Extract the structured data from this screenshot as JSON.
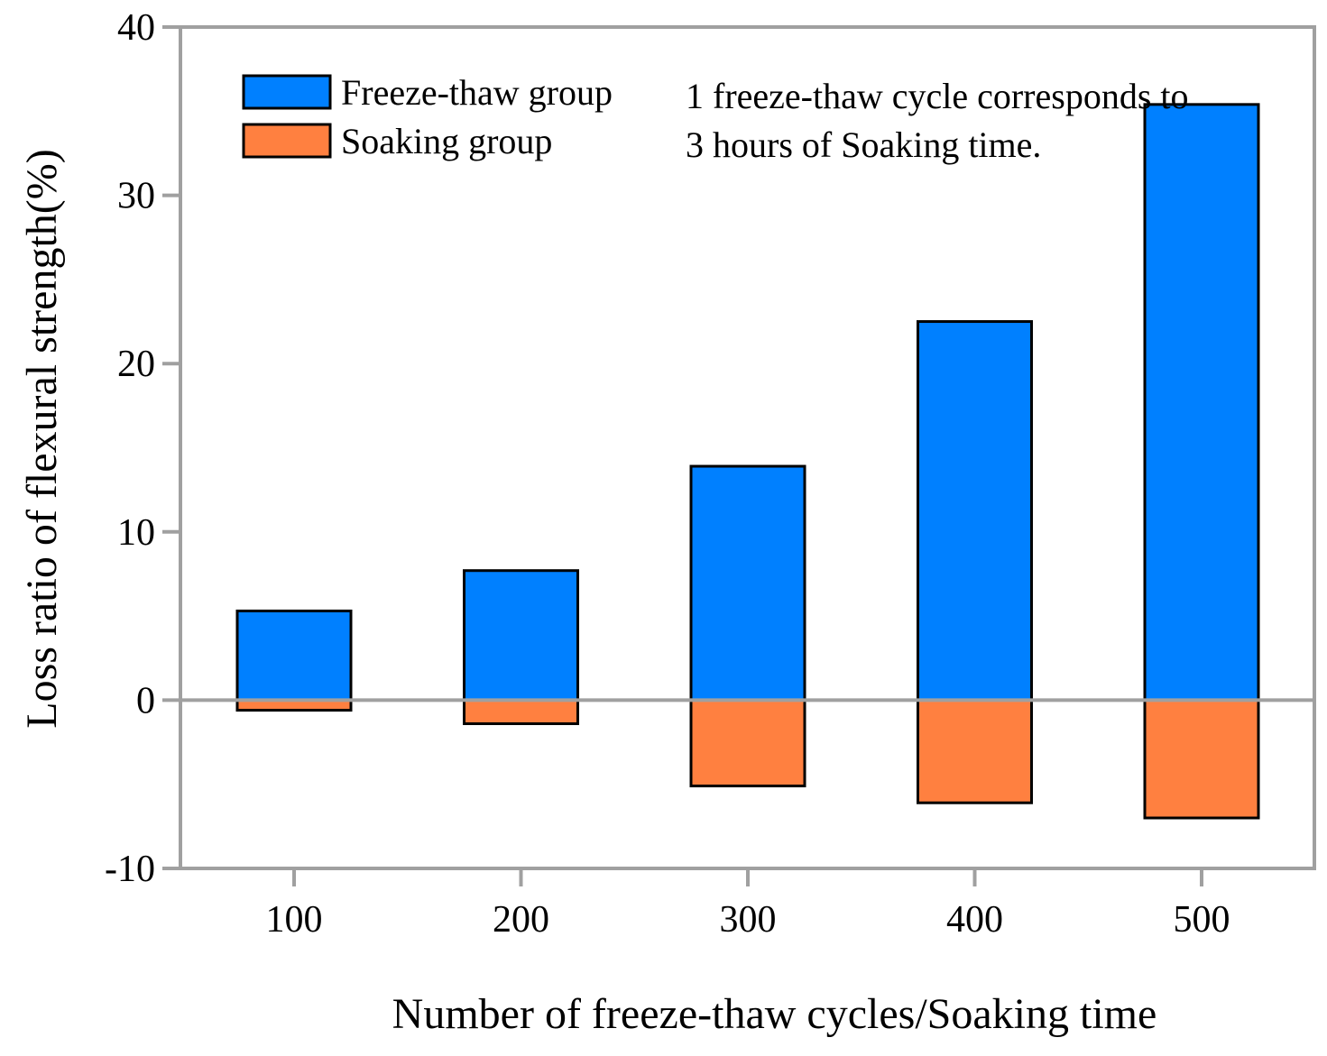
{
  "chart_data": {
    "type": "bar",
    "categories": [
      "100",
      "200",
      "300",
      "400",
      "500"
    ],
    "series": [
      {
        "name": "Freeze-thaw group",
        "values": [
          5.3,
          7.7,
          13.9,
          22.5,
          35.4
        ],
        "color": "#0080FF"
      },
      {
        "name": "Soaking group",
        "values": [
          -0.6,
          -1.4,
          -5.1,
          -6.1,
          -7.0
        ],
        "color": "#FF8040"
      }
    ],
    "stacked": true,
    "xlabel": "Number of freeze-thaw cycles/Soaking time",
    "ylabel": "Loss ratio of flexural strength(%)",
    "ylim": [
      -10,
      40
    ],
    "yticks": [
      -10,
      0,
      10,
      20,
      30,
      40
    ],
    "grid": false,
    "legend_position": "top-left",
    "annotation": [
      "1 freeze-thaw cycle corresponds to",
      "3 hours of Soaking time."
    ],
    "colors": {
      "axis": "#A0A0A0",
      "zero_line": "#A0A0A0",
      "bar_outline": "#000000"
    }
  }
}
